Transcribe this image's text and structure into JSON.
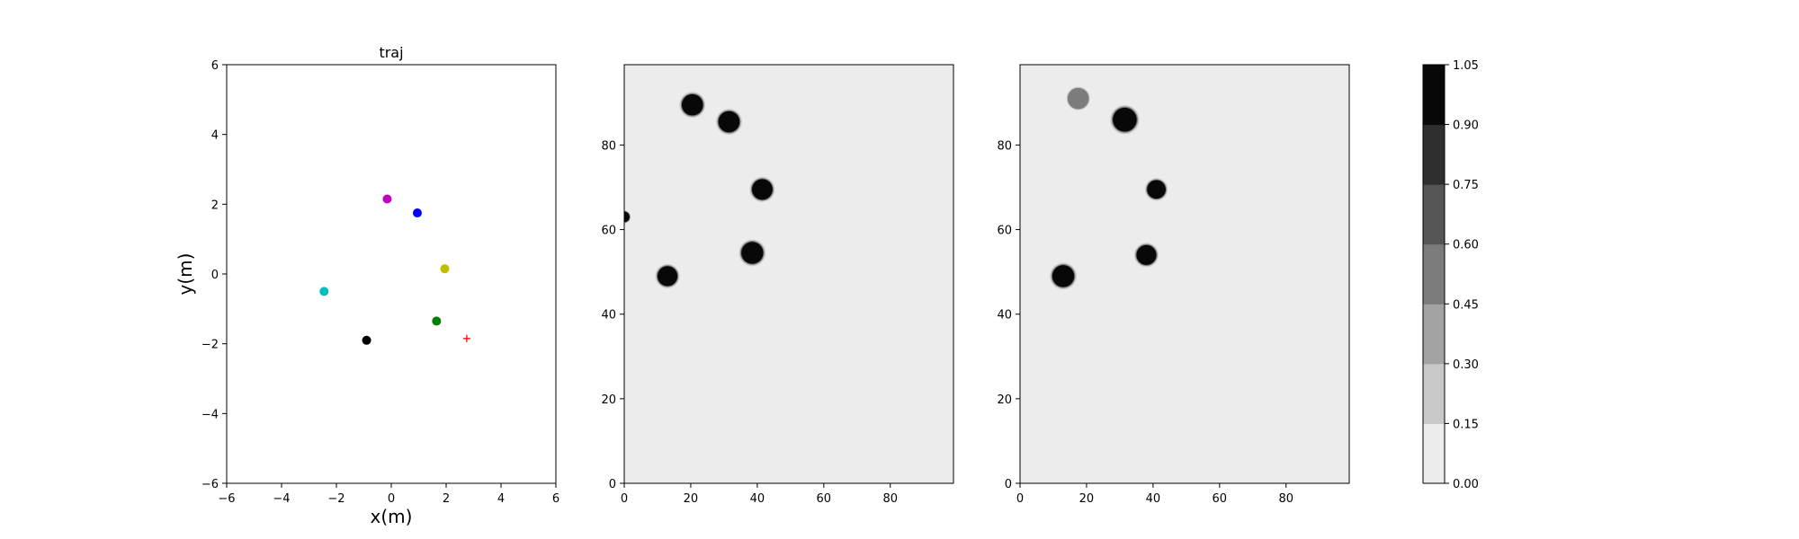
{
  "chart_data": [
    {
      "type": "scatter",
      "title": "traj",
      "xlabel": "x(m)",
      "ylabel": "y(m)",
      "xlim": [
        -6,
        6
      ],
      "ylim": [
        -6,
        6
      ],
      "xticks": [
        "−6",
        "−4",
        "−2",
        "0",
        "2",
        "4",
        "6"
      ],
      "yticks": [
        "−6",
        "−4",
        "−2",
        "0",
        "2",
        "4",
        "6"
      ],
      "grid": false,
      "points": [
        {
          "x": -0.15,
          "y": 2.15,
          "color": "#bf00bf",
          "marker": "circle"
        },
        {
          "x": 0.95,
          "y": 1.75,
          "color": "#0000ff",
          "marker": "circle"
        },
        {
          "x": 1.95,
          "y": 0.15,
          "color": "#bfbf00",
          "marker": "circle"
        },
        {
          "x": -2.45,
          "y": -0.5,
          "color": "#00bfbf",
          "marker": "circle"
        },
        {
          "x": 1.65,
          "y": -1.35,
          "color": "#008000",
          "marker": "circle"
        },
        {
          "x": -0.9,
          "y": -1.9,
          "color": "#000000",
          "marker": "circle"
        },
        {
          "x": 2.75,
          "y": -1.85,
          "color": "#ff0000",
          "marker": "plus"
        }
      ]
    },
    {
      "type": "heatmap",
      "title": "",
      "xlim": [
        0,
        99
      ],
      "ylim": [
        0,
        99
      ],
      "xticks": [
        "0",
        "20",
        "40",
        "60",
        "80"
      ],
      "yticks": [
        "0",
        "20",
        "40",
        "60",
        "80"
      ],
      "background_value": 0.0,
      "blobs": [
        {
          "x": 20.5,
          "y": 89.5,
          "radius": 3.2,
          "value": 1.0
        },
        {
          "x": 31.5,
          "y": 85.5,
          "radius": 3.2,
          "value": 1.0
        },
        {
          "x": 41.5,
          "y": 69.5,
          "radius": 3.1,
          "value": 1.0
        },
        {
          "x": 38.5,
          "y": 54.5,
          "radius": 3.3,
          "value": 1.0
        },
        {
          "x": 13.0,
          "y": 49.0,
          "radius": 3.0,
          "value": 1.0
        },
        {
          "x": 0.0,
          "y": 63.0,
          "radius": 1.6,
          "value": 1.0
        }
      ]
    },
    {
      "type": "heatmap",
      "title": "",
      "xlim": [
        0,
        99
      ],
      "ylim": [
        0,
        99
      ],
      "xticks": [
        "0",
        "20",
        "40",
        "60",
        "80"
      ],
      "yticks": [
        "0",
        "20",
        "40",
        "60",
        "80"
      ],
      "background_value": 0.0,
      "blobs": [
        {
          "x": 17.5,
          "y": 91.0,
          "radius": 3.2,
          "value": 0.55
        },
        {
          "x": 31.5,
          "y": 86.0,
          "radius": 3.6,
          "value": 1.0
        },
        {
          "x": 41.0,
          "y": 69.5,
          "radius": 2.8,
          "value": 1.0
        },
        {
          "x": 38.0,
          "y": 54.0,
          "radius": 3.0,
          "value": 1.0
        },
        {
          "x": 13.0,
          "y": 49.0,
          "radius": 3.3,
          "value": 1.0
        }
      ]
    }
  ],
  "colorbar": {
    "levels": [
      "0.00",
      "0.15",
      "0.30",
      "0.45",
      "0.60",
      "0.75",
      "0.90",
      "1.05"
    ],
    "colors": [
      "#ececec",
      "#c8c8c8",
      "#a3a3a3",
      "#7c7c7c",
      "#555555",
      "#2f2f2f",
      "#080808"
    ]
  }
}
